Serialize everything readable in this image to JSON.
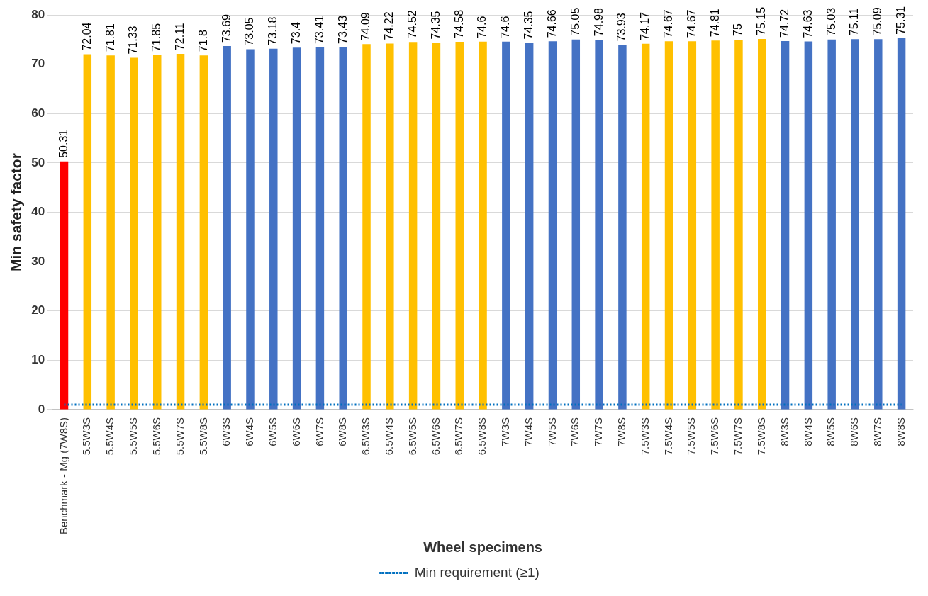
{
  "chart_data": {
    "type": "bar",
    "xlabel": "Wheel specimens",
    "ylabel": "Min safety factor",
    "categories": [
      "Benchmark - Mg (7W8S)",
      "5.5W3S",
      "5.5W4S",
      "5.5W5S",
      "5.5W6S",
      "5.5W7S",
      "5.5W8S",
      "6W3S",
      "6W4S",
      "6W5S",
      "6W6S",
      "6W7S",
      "6W8S",
      "6.5W3S",
      "6.5W4S",
      "6.5W5S",
      "6.5W6S",
      "6.5W7S",
      "6.5W8S",
      "7W3S",
      "7W4S",
      "7W5S",
      "7W6S",
      "7W7S",
      "7W8S",
      "7.5W3S",
      "7.5W4S",
      "7.5W5S",
      "7.5W6S",
      "7.5W7S",
      "7.5W8S",
      "8W3S",
      "8W4S",
      "8W5S",
      "8W6S",
      "8W7S",
      "8W8S"
    ],
    "series": [
      {
        "value_labels": [
          "50.31",
          "72.04",
          "71.81",
          "71.33",
          "71.85",
          "72.11",
          "71.8",
          "73.69",
          "73.05",
          "73.18",
          "73.4",
          "73.41",
          "73.43",
          "74.09",
          "74.22",
          "74.52",
          "74.35",
          "74.58",
          "74.6",
          "74.6",
          "74.35",
          "74.66",
          "75.05",
          "74.98",
          "73.93",
          "74.17",
          "74.67",
          "74.67",
          "74.81",
          "75",
          "75.15",
          "74.72",
          "74.63",
          "75.03",
          "75.11",
          "75.09",
          "75.31"
        ],
        "colors": [
          "#ff0000",
          "#ffc000",
          "#ffc000",
          "#ffc000",
          "#ffc000",
          "#ffc000",
          "#ffc000",
          "#4472c4",
          "#4472c4",
          "#4472c4",
          "#4472c4",
          "#4472c4",
          "#4472c4",
          "#ffc000",
          "#ffc000",
          "#ffc000",
          "#ffc000",
          "#ffc000",
          "#ffc000",
          "#4472c4",
          "#4472c4",
          "#4472c4",
          "#4472c4",
          "#4472c4",
          "#4472c4",
          "#ffc000",
          "#ffc000",
          "#ffc000",
          "#ffc000",
          "#ffc000",
          "#ffc000",
          "#4472c4",
          "#4472c4",
          "#4472c4",
          "#4472c4",
          "#4472c4",
          "#4472c4"
        ],
        "values": [
          50.31,
          72.04,
          71.81,
          71.33,
          71.85,
          72.11,
          71.8,
          73.69,
          73.05,
          73.18,
          73.4,
          73.41,
          73.43,
          74.09,
          74.22,
          74.52,
          74.35,
          74.58,
          74.6,
          74.6,
          74.35,
          74.66,
          75.05,
          74.98,
          73.93,
          74.17,
          74.67,
          74.67,
          74.81,
          75,
          75.15,
          74.72,
          74.63,
          75.03,
          75.11,
          75.09,
          75.31
        ]
      },
      {
        "type": "line",
        "name": "Min requirement (≥1)",
        "color": "#0070c0",
        "line_style": "dotted",
        "marker": "none",
        "values": [
          1,
          1,
          1,
          1,
          1,
          1,
          1,
          1,
          1,
          1,
          1,
          1,
          1,
          1,
          1,
          1,
          1,
          1,
          1,
          1,
          1,
          1,
          1,
          1,
          1,
          1,
          1,
          1,
          1,
          1,
          1,
          1,
          1,
          1,
          1,
          1,
          1
        ]
      }
    ],
    "ylim": [
      0,
      80
    ],
    "yticks": [
      0,
      10,
      20,
      30,
      40,
      50,
      60,
      70,
      80
    ],
    "grid": "y",
    "legend": "bottom"
  }
}
